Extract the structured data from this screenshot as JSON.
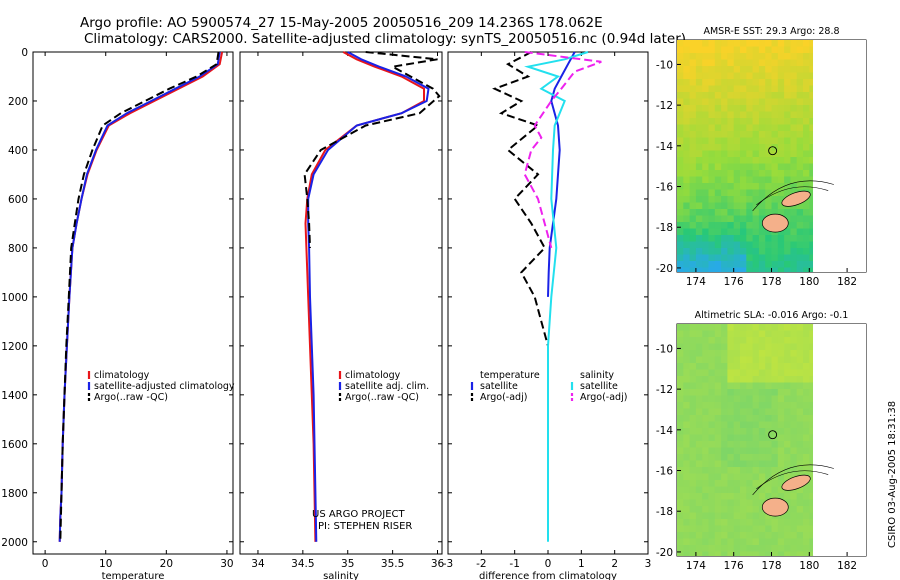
{
  "header": {
    "line1": "Argo profile: AO 5900574_27 15-May-2005 20050516_209 14.236S 178.062E",
    "line2": "Climatology: CARS2000. Satellite-adjusted climatology: synTS_20050516.nc (0.94d later)"
  },
  "credit": {
    "line1": "US ARGO PROJECT",
    "line2": "PI: STEPHEN RISER"
  },
  "timestamp": "CSIRO 03-Aug-2005 18:31:38",
  "colors": {
    "climatology": "#e8161b",
    "satellite": "#1a22e6",
    "argo": "#000000",
    "salinity_satellite": "#22e0ee",
    "salinity_argo": "#ee22ee"
  },
  "chart_data": [
    {
      "type": "line",
      "xlabel": "temperature",
      "ylabel": "",
      "xlim": [
        -2,
        31
      ],
      "ylim": [
        2050,
        0
      ],
      "xticks": [
        0,
        10,
        20,
        30
      ],
      "xtick_labels": [
        "0",
        "10",
        "20",
        "30"
      ],
      "yticks": [
        0,
        200,
        400,
        600,
        800,
        1000,
        1200,
        1400,
        1600,
        1800,
        2000
      ],
      "ytick_labels": [
        "0",
        "200",
        "400",
        "600",
        "800",
        "1000",
        "1200",
        "1400",
        "1600",
        "1800",
        "2000"
      ],
      "legend_position": "right",
      "series": [
        {
          "name": "climatology",
          "color": "climatology",
          "dash": "solid",
          "x": [
            29.2,
            28.8,
            26,
            22,
            18,
            14,
            10.5,
            8.5,
            7,
            6,
            5.2,
            4.5,
            4,
            3.6,
            3.2,
            2.9,
            2.7,
            2.5,
            2.4
          ],
          "y": [
            0,
            50,
            100,
            150,
            200,
            250,
            300,
            400,
            500,
            600,
            700,
            800,
            1000,
            1200,
            1400,
            1600,
            1800,
            1900,
            2000
          ]
        },
        {
          "name": "satellite-adjusted climatology",
          "color": "satellite",
          "dash": "solid",
          "x": [
            28.8,
            28.5,
            25.5,
            21.5,
            17.5,
            13.5,
            10.3,
            8.4,
            6.9,
            6,
            5.2,
            4.5,
            4,
            3.6,
            3.2,
            2.9,
            2.7,
            2.5,
            2.4
          ],
          "y": [
            0,
            50,
            100,
            150,
            200,
            250,
            300,
            400,
            500,
            600,
            700,
            800,
            1000,
            1200,
            1400,
            1600,
            1800,
            1900,
            2000
          ]
        },
        {
          "name": "Argo(..raw -QC)",
          "color": "argo",
          "dash": "dash",
          "x": [
            28.6,
            28.3,
            25,
            20.5,
            16.5,
            12.5,
            9.5,
            7.8,
            6.4,
            5.5,
            4.9,
            4.3,
            3.9,
            3.5,
            3.2,
            2.9,
            2.7,
            2.5
          ],
          "y": [
            0,
            50,
            100,
            150,
            200,
            250,
            300,
            400,
            500,
            600,
            700,
            800,
            1000,
            1200,
            1400,
            1600,
            1800,
            2000
          ]
        }
      ]
    },
    {
      "type": "line",
      "xlabel": "salinity",
      "ylabel": "",
      "xlim": [
        33.8,
        36.05
      ],
      "ylim": [
        2050,
        0
      ],
      "xticks": [
        34,
        34.5,
        35,
        35.5,
        36
      ],
      "xtick_labels": [
        "34",
        "34.5",
        "35",
        "35.5",
        "36"
      ],
      "legend_position": "right",
      "series": [
        {
          "name": "climatology",
          "color": "climatology",
          "dash": "solid",
          "x": [
            34.95,
            35.1,
            35.3,
            35.6,
            35.85,
            35.85,
            35.6,
            35.1,
            34.75,
            34.6,
            34.55,
            34.53,
            34.54,
            34.56,
            34.58,
            34.6,
            34.62,
            34.63,
            34.64
          ],
          "y": [
            0,
            30,
            60,
            100,
            150,
            200,
            250,
            300,
            400,
            500,
            600,
            700,
            800,
            1000,
            1200,
            1400,
            1600,
            1800,
            2000
          ]
        },
        {
          "name": "satellite adj. clim.",
          "color": "satellite",
          "dash": "solid",
          "x": [
            35.0,
            35.15,
            35.35,
            35.65,
            35.9,
            35.88,
            35.6,
            35.1,
            34.78,
            34.62,
            34.56,
            34.56,
            34.57,
            34.58,
            34.6,
            34.62,
            34.63,
            34.64,
            34.65
          ],
          "y": [
            0,
            30,
            60,
            100,
            150,
            200,
            250,
            300,
            400,
            500,
            600,
            700,
            800,
            1000,
            1200,
            1400,
            1600,
            1800,
            2000
          ]
        },
        {
          "name": "Argo(..raw -QC)",
          "color": "argo",
          "dash": "dash",
          "x": [
            35.2,
            36.0,
            35.5,
            35.7,
            35.95,
            36.02,
            35.8,
            35.2,
            34.7,
            34.52,
            34.55,
            34.57,
            34.58
          ],
          "y": [
            0,
            30,
            60,
            100,
            150,
            180,
            250,
            300,
            400,
            500,
            600,
            700,
            800
          ]
        }
      ]
    },
    {
      "type": "line",
      "xlabel": "difference from climatology",
      "ylabel": "",
      "xlim": [
        -3,
        3
      ],
      "ylim": [
        2050,
        0
      ],
      "xticks": [
        -3,
        -2,
        -1,
        0,
        1,
        2,
        3
      ],
      "xtick_labels": [
        "-3",
        "-2",
        "-1",
        "0",
        "1",
        "2",
        "3"
      ],
      "legend_title_left": "temperature",
      "legend_title_right": "salinity",
      "series": [
        {
          "name": "satellite",
          "legend_group": "temperature",
          "color": "satellite",
          "dash": "solid",
          "x": [
            0.8,
            0.6,
            0.4,
            0.2,
            0.1,
            0.3,
            0.35,
            0.3,
            0.25,
            0.15,
            0.05,
            0.02,
            0
          ],
          "y": [
            0,
            50,
            100,
            150,
            200,
            300,
            400,
            500,
            600,
            700,
            800,
            900,
            1000
          ]
        },
        {
          "name": "Argo(-adj)",
          "legend_group": "temperature",
          "color": "argo",
          "dash": "dash",
          "x": [
            -0.5,
            -1.2,
            -0.6,
            -1.6,
            -0.8,
            -1.4,
            -0.3,
            -1.2,
            -0.3,
            -1.0,
            -0.5,
            -0.1,
            -0.8,
            -0.4,
            -0.2,
            0
          ],
          "y": [
            0,
            50,
            100,
            150,
            200,
            250,
            300,
            400,
            500,
            600,
            700,
            800,
            900,
            1000,
            1100,
            1200
          ]
        },
        {
          "name": "satellite",
          "legend_group": "salinity",
          "color": "salinity_satellite",
          "dash": "solid",
          "x": [
            1.2,
            0.5,
            -0.6,
            0.3,
            -0.2,
            0.5,
            0.2,
            0.15,
            0.1,
            0.25,
            0.1,
            0.0,
            0.0,
            0.0,
            0.0,
            0.0
          ],
          "y": [
            0,
            30,
            60,
            100,
            150,
            200,
            300,
            400,
            600,
            800,
            1000,
            1200,
            1400,
            1600,
            1800,
            2000
          ]
        },
        {
          "name": "Argo(-adj)",
          "legend_group": "salinity",
          "color": "salinity_argo",
          "dash": "dash",
          "x": [
            -0.7,
            1.6,
            0.8,
            0.4,
            0.1,
            -0.4,
            -0.2,
            -0.5,
            -0.7,
            -0.3,
            0.1
          ],
          "y": [
            0,
            40,
            80,
            150,
            200,
            300,
            350,
            400,
            500,
            600,
            800
          ]
        }
      ]
    }
  ],
  "maps": [
    {
      "title": "AMSR-E SST: 29.3 Argo: 28.8",
      "xlim": [
        173,
        183
      ],
      "ylim": [
        -20.2,
        -8.8
      ],
      "xticks": [
        174,
        176,
        178,
        180,
        182
      ],
      "xtick_labels": [
        "174",
        "176",
        "178",
        "180",
        "182"
      ],
      "yticks": [
        -10,
        -12,
        -14,
        -16,
        -18,
        -20
      ],
      "ytick_labels": [
        "-10",
        "-12",
        "-14",
        "-16",
        "-18",
        "-20"
      ],
      "argo_lon": 178.06,
      "argo_lat": -14.24,
      "palette": "sst"
    },
    {
      "title": "Altimetric SLA: -0.016 Argo: -0.1",
      "xlim": [
        173,
        183
      ],
      "ylim": [
        -20.2,
        -8.8
      ],
      "xticks": [
        174,
        176,
        178,
        180,
        182
      ],
      "xtick_labels": [
        "174",
        "176",
        "178",
        "180",
        "182"
      ],
      "yticks": [
        -10,
        -12,
        -14,
        -16,
        -18,
        -20
      ],
      "ytick_labels": [
        "-10",
        "-12",
        "-14",
        "-16",
        "-18",
        "-20"
      ],
      "argo_lon": 178.06,
      "argo_lat": -14.24,
      "palette": "sla"
    }
  ]
}
